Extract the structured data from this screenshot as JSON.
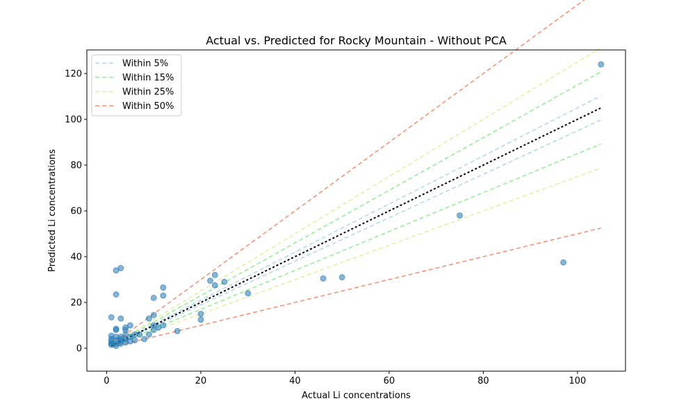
{
  "chart_data": {
    "type": "scatter",
    "title": "Actual vs. Predicted for Rocky Mountain - Without PCA",
    "xlabel": "Actual Li concentrations",
    "ylabel": "Predicted Li concentrations",
    "xlim": [
      -4.2,
      110.2
    ],
    "ylim": [
      -10.0,
      130.3
    ],
    "xticks": [
      0,
      20,
      40,
      60,
      80,
      100
    ],
    "yticks": [
      0,
      20,
      40,
      60,
      80,
      100,
      120
    ],
    "grid": false,
    "legend_position": "top-left",
    "colors": {
      "points": "#1f77b4",
      "identity": "#000000",
      "within_5": "#add8e6",
      "within_15": "#90ee90",
      "within_25": "#e6ee9c",
      "within_50": "#fa8c6e"
    },
    "legend": [
      {
        "label": "Within 5%",
        "color": "#add8e6",
        "band": 0.05
      },
      {
        "label": "Within 15%",
        "color": "#90ee90",
        "band": 0.15
      },
      {
        "label": "Within 25%",
        "color": "#e6ee9c",
        "band": 0.25
      },
      {
        "label": "Within 50%",
        "color": "#fa8c6e",
        "band": 0.5
      }
    ],
    "reference_lines": {
      "x_range": [
        1,
        105
      ],
      "identity": "y = x"
    },
    "points": [
      {
        "x": 1,
        "y": 13.5
      },
      {
        "x": 1,
        "y": 5.5
      },
      {
        "x": 1,
        "y": 4
      },
      {
        "x": 1,
        "y": 3
      },
      {
        "x": 1,
        "y": 2
      },
      {
        "x": 1,
        "y": 1.5
      },
      {
        "x": 2,
        "y": 34
      },
      {
        "x": 2,
        "y": 23.5
      },
      {
        "x": 2,
        "y": 8.5
      },
      {
        "x": 2,
        "y": 8
      },
      {
        "x": 2,
        "y": 5
      },
      {
        "x": 2,
        "y": 3.5
      },
      {
        "x": 2,
        "y": 2
      },
      {
        "x": 2,
        "y": 1
      },
      {
        "x": 3,
        "y": 35
      },
      {
        "x": 3,
        "y": 13
      },
      {
        "x": 3,
        "y": 5
      },
      {
        "x": 3,
        "y": 4
      },
      {
        "x": 3,
        "y": 3
      },
      {
        "x": 3,
        "y": 2
      },
      {
        "x": 4,
        "y": 9
      },
      {
        "x": 4,
        "y": 8
      },
      {
        "x": 4,
        "y": 6
      },
      {
        "x": 4,
        "y": 4
      },
      {
        "x": 4,
        "y": 2.5
      },
      {
        "x": 5,
        "y": 10
      },
      {
        "x": 5,
        "y": 5
      },
      {
        "x": 5,
        "y": 3
      },
      {
        "x": 6,
        "y": 6
      },
      {
        "x": 6,
        "y": 3.5
      },
      {
        "x": 7,
        "y": 6
      },
      {
        "x": 8,
        "y": 4
      },
      {
        "x": 9,
        "y": 13
      },
      {
        "x": 9,
        "y": 6
      },
      {
        "x": 10,
        "y": 22
      },
      {
        "x": 10,
        "y": 14.5
      },
      {
        "x": 10,
        "y": 10
      },
      {
        "x": 10,
        "y": 8
      },
      {
        "x": 11,
        "y": 9
      },
      {
        "x": 12,
        "y": 26.5
      },
      {
        "x": 12,
        "y": 23
      },
      {
        "x": 12,
        "y": 10
      },
      {
        "x": 15,
        "y": 7.5
      },
      {
        "x": 20,
        "y": 15
      },
      {
        "x": 20,
        "y": 12.5
      },
      {
        "x": 22,
        "y": 29.5
      },
      {
        "x": 23,
        "y": 32
      },
      {
        "x": 23,
        "y": 27.5
      },
      {
        "x": 25,
        "y": 29
      },
      {
        "x": 30,
        "y": 24
      },
      {
        "x": 46,
        "y": 30.5
      },
      {
        "x": 50,
        "y": 31
      },
      {
        "x": 75,
        "y": 58
      },
      {
        "x": 97,
        "y": 37.5
      },
      {
        "x": 105,
        "y": 124
      }
    ]
  }
}
